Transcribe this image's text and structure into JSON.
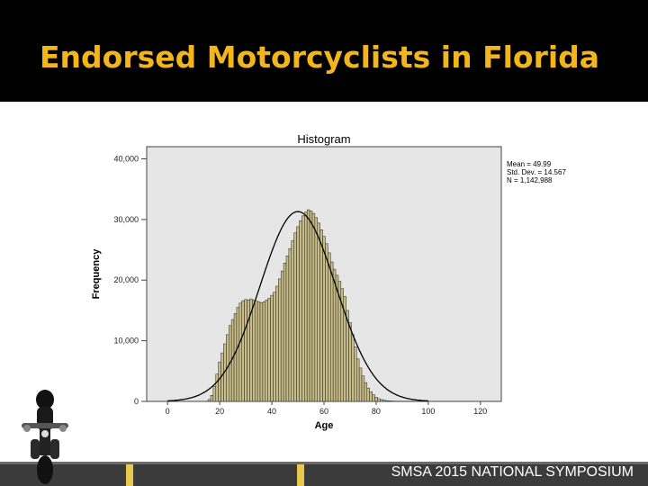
{
  "slide": {
    "title": "Endorsed Motorcyclists in Florida",
    "footer": "SMSA 2015 NATIONAL SYMPOSIUM"
  },
  "colors": {
    "title": "#f2b51c",
    "bars": "#c8bd86",
    "curve": "#000000",
    "plot_bg": "#e6e6e6"
  },
  "icons": {
    "rider": "motorcyclist-icon"
  },
  "chart_data": {
    "type": "bar",
    "title": "Histogram",
    "xlabel": "Age",
    "ylabel": "Frequency",
    "xlim": [
      -8,
      128
    ],
    "ylim": [
      0,
      42000
    ],
    "x_ticks": [
      "0",
      "20",
      "40",
      "60",
      "80",
      "100",
      "120"
    ],
    "y_ticks": [
      "0",
      "10,000",
      "20,000",
      "30,000",
      "40,000"
    ],
    "stats": [
      "Mean = 49.99",
      "Std. Dev. = 14.567",
      "N = 1,142,988"
    ],
    "normal_curve": {
      "mean": 49.99,
      "sd": 14.567
    },
    "x": [
      16,
      17,
      18,
      19,
      20,
      21,
      22,
      23,
      24,
      25,
      26,
      27,
      28,
      29,
      30,
      31,
      32,
      33,
      34,
      35,
      36,
      37,
      38,
      39,
      40,
      41,
      42,
      43,
      44,
      45,
      46,
      47,
      48,
      49,
      50,
      51,
      52,
      53,
      54,
      55,
      56,
      57,
      58,
      59,
      60,
      61,
      62,
      63,
      64,
      65,
      66,
      67,
      68,
      69,
      70,
      71,
      72,
      73,
      74,
      75,
      76,
      77,
      78,
      79,
      80,
      81,
      82,
      83,
      84,
      85,
      86,
      87,
      88,
      89,
      90,
      91,
      92,
      93,
      94,
      95,
      96,
      97,
      98,
      99
    ],
    "values": [
      300,
      1000,
      2500,
      4500,
      6500,
      8000,
      9500,
      11000,
      12500,
      13500,
      14500,
      15500,
      16200,
      16600,
      16800,
      16700,
      16900,
      16700,
      16600,
      16400,
      16300,
      16400,
      16700,
      17000,
      17500,
      18000,
      19000,
      20200,
      21500,
      22800,
      24000,
      25200,
      26500,
      27800,
      28800,
      29800,
      30600,
      31200,
      31600,
      31400,
      31000,
      30300,
      29400,
      28300,
      27200,
      26000,
      24500,
      23000,
      21800,
      20800,
      19800,
      18600,
      17300,
      15000,
      13000,
      11000,
      9000,
      7000,
      5500,
      4200,
      3100,
      2200,
      1600,
      1100,
      700,
      450,
      300,
      200,
      130,
      90,
      60,
      40,
      25,
      15,
      10,
      8,
      5,
      4,
      3,
      2,
      1,
      1,
      1,
      1
    ]
  }
}
